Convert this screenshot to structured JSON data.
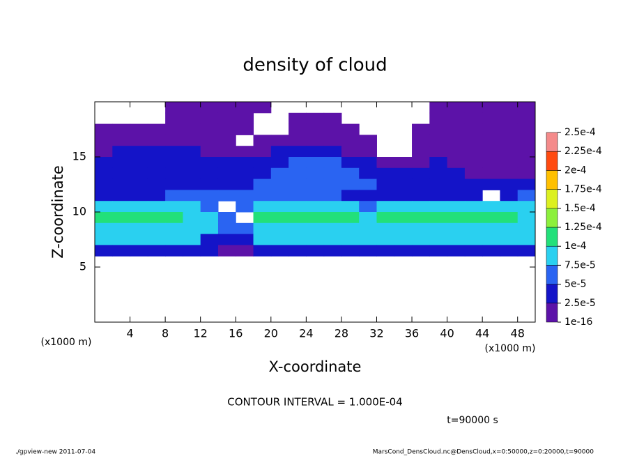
{
  "chart_data": {
    "type": "heatmap",
    "title": "density of cloud",
    "x_label": "X-coordinate",
    "y_label": "Z-coordinate",
    "x_unit": "(x1000 m)",
    "y_unit": "(x1000 m)",
    "xlim": [
      0,
      50
    ],
    "ylim": [
      0,
      20
    ],
    "xticks": [
      4,
      8,
      12,
      16,
      20,
      24,
      28,
      32,
      36,
      40,
      44,
      48
    ],
    "yticks": [
      5,
      10,
      15
    ],
    "x": [
      1,
      3,
      5,
      7,
      9,
      11,
      13,
      15,
      17,
      19,
      21,
      23,
      25,
      27,
      29,
      31,
      33,
      35,
      37,
      39,
      41,
      43,
      45,
      47,
      49
    ],
    "y": [
      19.5,
      18.5,
      17.5,
      16.5,
      15.5,
      14.5,
      13.5,
      12.5,
      11.5,
      10.5,
      9.5,
      8.5,
      7.5,
      6.5
    ],
    "values": [
      [
        null,
        null,
        null,
        null,
        1e-05,
        1e-05,
        1e-05,
        1e-05,
        1e-05,
        1e-05,
        null,
        null,
        null,
        null,
        null,
        null,
        null,
        null,
        null,
        1e-05,
        1e-05,
        1e-05,
        1e-05,
        1e-05,
        1e-05
      ],
      [
        null,
        null,
        null,
        null,
        1e-05,
        1e-05,
        1e-05,
        1e-05,
        1e-05,
        null,
        null,
        1e-05,
        1e-05,
        1e-05,
        null,
        null,
        null,
        null,
        null,
        1e-05,
        1e-05,
        1e-05,
        1e-05,
        1e-05,
        1e-05
      ],
      [
        1e-05,
        1e-05,
        1e-05,
        1e-05,
        1e-05,
        1e-05,
        1e-05,
        1e-05,
        1e-05,
        null,
        null,
        1e-05,
        1e-05,
        1e-05,
        1e-05,
        null,
        null,
        null,
        1e-05,
        1e-05,
        1e-05,
        1e-05,
        1e-05,
        1e-05,
        1e-05
      ],
      [
        1e-05,
        1e-05,
        1e-05,
        1e-05,
        1e-05,
        1e-05,
        1e-05,
        1e-05,
        null,
        1e-05,
        1e-05,
        1e-05,
        1e-05,
        1e-05,
        1e-05,
        1e-05,
        null,
        null,
        1e-05,
        1e-05,
        1e-05,
        1e-05,
        1e-05,
        1e-05,
        1e-05
      ],
      [
        1e-05,
        3e-05,
        3e-05,
        3e-05,
        3e-05,
        3e-05,
        1e-05,
        1e-05,
        1e-05,
        1e-05,
        3e-05,
        3e-05,
        3e-05,
        3e-05,
        1e-05,
        1e-05,
        null,
        null,
        1e-05,
        1e-05,
        1e-05,
        1e-05,
        1e-05,
        1e-05,
        1e-05
      ],
      [
        3e-05,
        3e-05,
        3e-05,
        3e-05,
        3e-05,
        3e-05,
        3e-05,
        3e-05,
        3e-05,
        3e-05,
        3e-05,
        6e-05,
        6e-05,
        6e-05,
        3e-05,
        3e-05,
        1e-05,
        1e-05,
        1e-05,
        3e-05,
        1e-05,
        1e-05,
        1e-05,
        1e-05,
        1e-05
      ],
      [
        3e-05,
        3e-05,
        3e-05,
        3e-05,
        3e-05,
        3e-05,
        3e-05,
        3e-05,
        3e-05,
        3e-05,
        6e-05,
        6e-05,
        6e-05,
        6e-05,
        6e-05,
        3e-05,
        3e-05,
        3e-05,
        3e-05,
        3e-05,
        3e-05,
        1e-05,
        1e-05,
        1e-05,
        1e-05
      ],
      [
        3e-05,
        3e-05,
        3e-05,
        3e-05,
        3e-05,
        3e-05,
        3e-05,
        3e-05,
        3e-05,
        6e-05,
        6e-05,
        6e-05,
        6e-05,
        6e-05,
        6e-05,
        6e-05,
        3e-05,
        3e-05,
        3e-05,
        3e-05,
        3e-05,
        3e-05,
        3e-05,
        3e-05,
        3e-05
      ],
      [
        3e-05,
        3e-05,
        3e-05,
        3e-05,
        6e-05,
        6e-05,
        6e-05,
        6e-05,
        6e-05,
        6e-05,
        6e-05,
        6e-05,
        6e-05,
        6e-05,
        3e-05,
        3e-05,
        3e-05,
        3e-05,
        3e-05,
        3e-05,
        3e-05,
        3e-05,
        null,
        3e-05,
        6e-05
      ],
      [
        8.5e-05,
        8.5e-05,
        8.5e-05,
        8.5e-05,
        8.5e-05,
        8.5e-05,
        6e-05,
        null,
        6e-05,
        8.5e-05,
        8.5e-05,
        8.5e-05,
        8.5e-05,
        8.5e-05,
        8.5e-05,
        6e-05,
        8.5e-05,
        8.5e-05,
        8.5e-05,
        8.5e-05,
        8.5e-05,
        8.5e-05,
        8.5e-05,
        8.5e-05,
        8.5e-05
      ],
      [
        0.00011,
        0.00011,
        0.00011,
        0.00011,
        0.00011,
        8.5e-05,
        8.5e-05,
        6e-05,
        null,
        0.00011,
        0.00011,
        0.00011,
        0.00011,
        0.00011,
        0.00011,
        8.5e-05,
        0.00011,
        0.00011,
        0.00011,
        0.00011,
        0.00011,
        0.00011,
        0.00011,
        0.00011,
        8.5e-05
      ],
      [
        8.5e-05,
        8.5e-05,
        8.5e-05,
        8.5e-05,
        8.5e-05,
        8.5e-05,
        8.5e-05,
        6e-05,
        6e-05,
        8.5e-05,
        8.5e-05,
        8.5e-05,
        8.5e-05,
        8.5e-05,
        8.5e-05,
        8.5e-05,
        8.5e-05,
        8.5e-05,
        8.5e-05,
        8.5e-05,
        8.5e-05,
        8.5e-05,
        8.5e-05,
        8.5e-05,
        8.5e-05
      ],
      [
        8.5e-05,
        8.5e-05,
        8.5e-05,
        8.5e-05,
        8.5e-05,
        8.5e-05,
        3e-05,
        3e-05,
        3e-05,
        8.5e-05,
        8.5e-05,
        8.5e-05,
        8.5e-05,
        8.5e-05,
        8.5e-05,
        8.5e-05,
        8.5e-05,
        8.5e-05,
        8.5e-05,
        8.5e-05,
        8.5e-05,
        8.5e-05,
        8.5e-05,
        8.5e-05,
        8.5e-05
      ],
      [
        3e-05,
        3e-05,
        3e-05,
        3e-05,
        3e-05,
        3e-05,
        3e-05,
        1e-05,
        1e-05,
        3e-05,
        3e-05,
        3e-05,
        3e-05,
        3e-05,
        3e-05,
        3e-05,
        3e-05,
        3e-05,
        3e-05,
        3e-05,
        3e-05,
        3e-05,
        3e-05,
        3e-05,
        3e-05
      ]
    ],
    "levels": [
      1e-16,
      {
        "value": 2.5e-05,
        "label": "2.5e-5"
      },
      {
        "value": 5e-05,
        "label": "5e-5"
      },
      {
        "value": 7.5e-05,
        "label": "7.5e-5"
      },
      {
        "value": 0.0001,
        "label": "1e-4"
      },
      {
        "value": 0.000125,
        "label": "1.25e-4"
      },
      {
        "value": 0.00015,
        "label": "1.5e-4"
      },
      {
        "value": 0.000175,
        "label": "1.75e-4"
      },
      {
        "value": 0.0002,
        "label": "2e-4"
      },
      {
        "value": 0.000225,
        "label": "2.25e-4"
      },
      {
        "value": 0.00025,
        "label": "2.5e-4"
      }
    ],
    "colors": [
      "#5c12a8",
      "#1414c8",
      "#2a64f2",
      "#2ad0f0",
      "#22e07a",
      "#8cf03c",
      "#dcf020",
      "#ffc000",
      "#ff4a10",
      "#f48a8a"
    ],
    "contour_note": "CONTOUR INTERVAL = 1.000E-04",
    "time_note": "t=90000 s",
    "footer_left": "./gpview-new  2011-07-04",
    "footer_right": "MarsCond_DensCloud.nc@DensCloud,x=0:50000,z=0:20000,t=90000"
  }
}
